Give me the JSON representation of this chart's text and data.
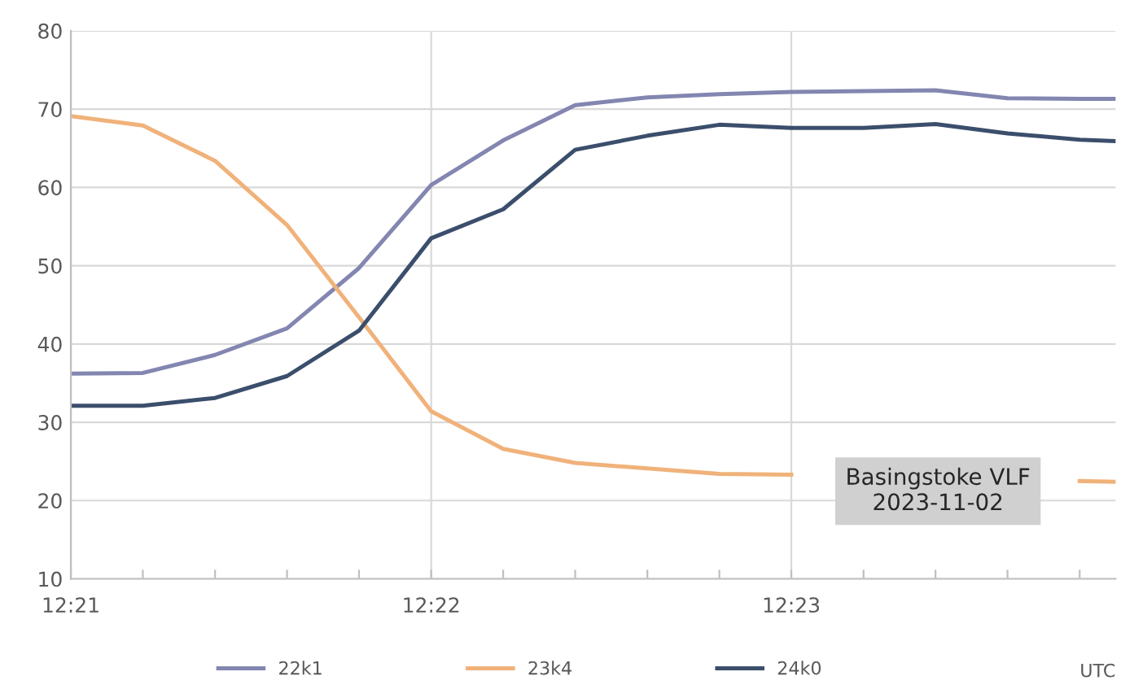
{
  "chart_data": {
    "type": "line",
    "xlabel": "UTC",
    "x": [
      12.35,
      12.35333,
      12.35667,
      12.36,
      12.36333,
      12.36667,
      12.37,
      12.37333,
      12.37667,
      12.38,
      12.38333,
      12.38667,
      12.39,
      12.39333,
      12.39667,
      12.39833
    ],
    "series": [
      {
        "name": "22k1",
        "color": "#8386b0",
        "values": [
          36.2,
          36.3,
          38.6,
          42.0,
          49.7,
          60.3,
          66.0,
          70.5,
          71.5,
          71.9,
          72.2,
          72.3,
          72.4,
          71.4,
          71.3,
          71.3
        ]
      },
      {
        "name": "23k4",
        "color": "#f0b27a",
        "values": [
          69.1,
          67.9,
          63.4,
          55.2,
          43.4,
          31.4,
          26.6,
          24.8,
          24.1,
          23.4,
          23.3,
          null,
          null,
          null,
          22.5,
          22.4
        ]
      },
      {
        "name": "24k0",
        "color": "#3b4e6c",
        "values": [
          32.1,
          32.1,
          33.1,
          35.9,
          41.7,
          53.5,
          57.2,
          64.8,
          66.6,
          68.0,
          67.6,
          67.6,
          68.1,
          66.9,
          66.1,
          65.9
        ]
      }
    ],
    "xlim": [
      12.35,
      12.39833
    ],
    "ylim": [
      10,
      80
    ],
    "xticks": [
      {
        "value": 12.35,
        "label": "12:21"
      },
      {
        "value": 12.35333,
        "label": null
      },
      {
        "value": 12.35667,
        "label": null
      },
      {
        "value": 12.36,
        "label": null
      },
      {
        "value": 12.36333,
        "label": null
      },
      {
        "value": 12.36667,
        "label": "12:22"
      },
      {
        "value": 12.37,
        "label": null
      },
      {
        "value": 12.37333,
        "label": null
      },
      {
        "value": 12.37667,
        "label": null
      },
      {
        "value": 12.38,
        "label": null
      },
      {
        "value": 12.38333,
        "label": "12:23"
      },
      {
        "value": 12.38667,
        "label": null
      },
      {
        "value": 12.39,
        "label": null
      },
      {
        "value": 12.39333,
        "label": null
      },
      {
        "value": 12.39667,
        "label": null
      }
    ],
    "yticks": [
      10,
      20,
      30,
      40,
      50,
      60,
      70,
      80
    ],
    "grid": true,
    "legend": "bottom",
    "annotations": [
      "Basingstoke VLF\n2023-11-02"
    ]
  }
}
